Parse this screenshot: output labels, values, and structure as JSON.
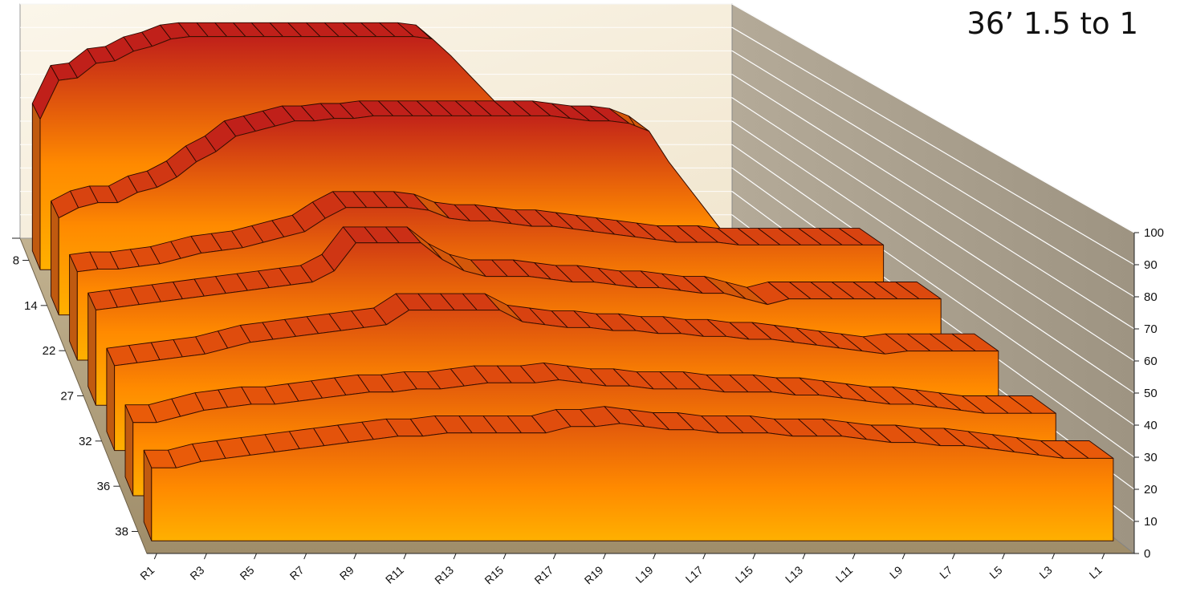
{
  "chart_data": {
    "type": "area",
    "subtype": "3d-stacked-depth",
    "title": "36’ 1.5 to 1",
    "categories": [
      "R1",
      "R2",
      "R3",
      "R4",
      "R5",
      "R6",
      "R7",
      "R8",
      "R9",
      "R10",
      "R11",
      "R12",
      "R13",
      "R14",
      "R15",
      "R16",
      "R17",
      "R18",
      "R19",
      "R20",
      "L20",
      "L19",
      "L18",
      "L17",
      "L16",
      "L15",
      "L14",
      "L13",
      "L12",
      "L11",
      "L10",
      "L9",
      "L8",
      "L7",
      "L6",
      "L5",
      "L4",
      "L3",
      "L2",
      "L1"
    ],
    "x_tick_labels": [
      "R1",
      "R3",
      "R5",
      "R7",
      "R9",
      "R11",
      "R13",
      "R15",
      "R17",
      "R19",
      "L19",
      "L17",
      "L15",
      "L13",
      "L11",
      "L9",
      "L7",
      "L5",
      "L3",
      "L1"
    ],
    "series": [
      {
        "name": "8",
        "values": [
          62,
          78,
          79,
          85,
          86,
          90,
          92,
          95,
          96,
          96,
          96,
          96,
          96,
          96,
          96,
          96,
          96,
          96,
          96,
          96,
          96,
          95,
          88,
          80,
          72,
          64,
          60,
          56,
          52,
          48,
          40,
          30,
          22,
          14,
          10,
          8,
          7,
          6,
          6,
          6
        ]
      },
      {
        "name": "14",
        "values": [
          38,
          42,
          44,
          44,
          48,
          50,
          54,
          60,
          64,
          70,
          72,
          74,
          76,
          76,
          77,
          77,
          78,
          78,
          78,
          78,
          78,
          78,
          78,
          78,
          78,
          78,
          77,
          76,
          76,
          75,
          72,
          60,
          50,
          40,
          30,
          22,
          20,
          20,
          20,
          20
        ]
      },
      {
        "name": "22",
        "values": [
          33,
          34,
          34,
          35,
          36,
          38,
          40,
          41,
          42,
          44,
          46,
          48,
          53,
          57,
          57,
          57,
          57,
          56,
          53,
          52,
          52,
          51,
          50,
          50,
          49,
          48,
          47,
          46,
          45,
          44,
          44,
          44,
          43,
          43,
          43,
          43,
          43,
          43,
          43,
          43
        ]
      },
      {
        "name": "27",
        "values": [
          34,
          35,
          36,
          37,
          38,
          39,
          40,
          41,
          42,
          43,
          44,
          48,
          58,
          58,
          58,
          58,
          52,
          48,
          46,
          46,
          46,
          45,
          44,
          44,
          43,
          42,
          42,
          41,
          40,
          40,
          38,
          36,
          38,
          38,
          38,
          38,
          38,
          38,
          38,
          38
        ]
      },
      {
        "name": "32",
        "values": [
          29,
          30,
          31,
          32,
          33,
          35,
          37,
          38,
          39,
          40,
          41,
          42,
          43,
          48,
          48,
          48,
          48,
          48,
          44,
          43,
          42,
          42,
          41,
          41,
          40,
          40,
          39,
          39,
          38,
          38,
          37,
          36,
          35,
          34,
          33,
          34,
          34,
          34,
          34,
          34
        ]
      },
      {
        "name": "36",
        "values": [
          24,
          24,
          26,
          28,
          29,
          30,
          30,
          31,
          32,
          33,
          34,
          34,
          35,
          35,
          36,
          37,
          37,
          37,
          38,
          37,
          36,
          36,
          35,
          35,
          35,
          34,
          34,
          34,
          33,
          33,
          32,
          31,
          30,
          30,
          29,
          28,
          27,
          27,
          27,
          27
        ]
      },
      {
        "name": "38",
        "values": [
          23,
          23,
          25,
          26,
          27,
          28,
          29,
          30,
          31,
          32,
          33,
          33,
          34,
          34,
          34,
          34,
          34,
          36,
          36,
          37,
          36,
          35,
          35,
          34,
          34,
          34,
          33,
          33,
          33,
          32,
          31,
          31,
          30,
          30,
          29,
          28,
          27,
          26,
          26,
          26
        ]
      }
    ],
    "y_axis": {
      "min": 0,
      "max": 100,
      "step": 10,
      "position": "right"
    },
    "depth_axis_labels": [
      "8",
      "14",
      "22",
      "27",
      "32",
      "36",
      "38"
    ],
    "walls": {
      "back": "#f7eedc",
      "side": "#a89f8f",
      "floor": "#b5a684"
    },
    "colors": {
      "dark_red": "#c0201a",
      "orange": "#ff8a00",
      "light": "#ffb000",
      "edge": "#000000"
    },
    "legend": "none",
    "grid": true
  }
}
